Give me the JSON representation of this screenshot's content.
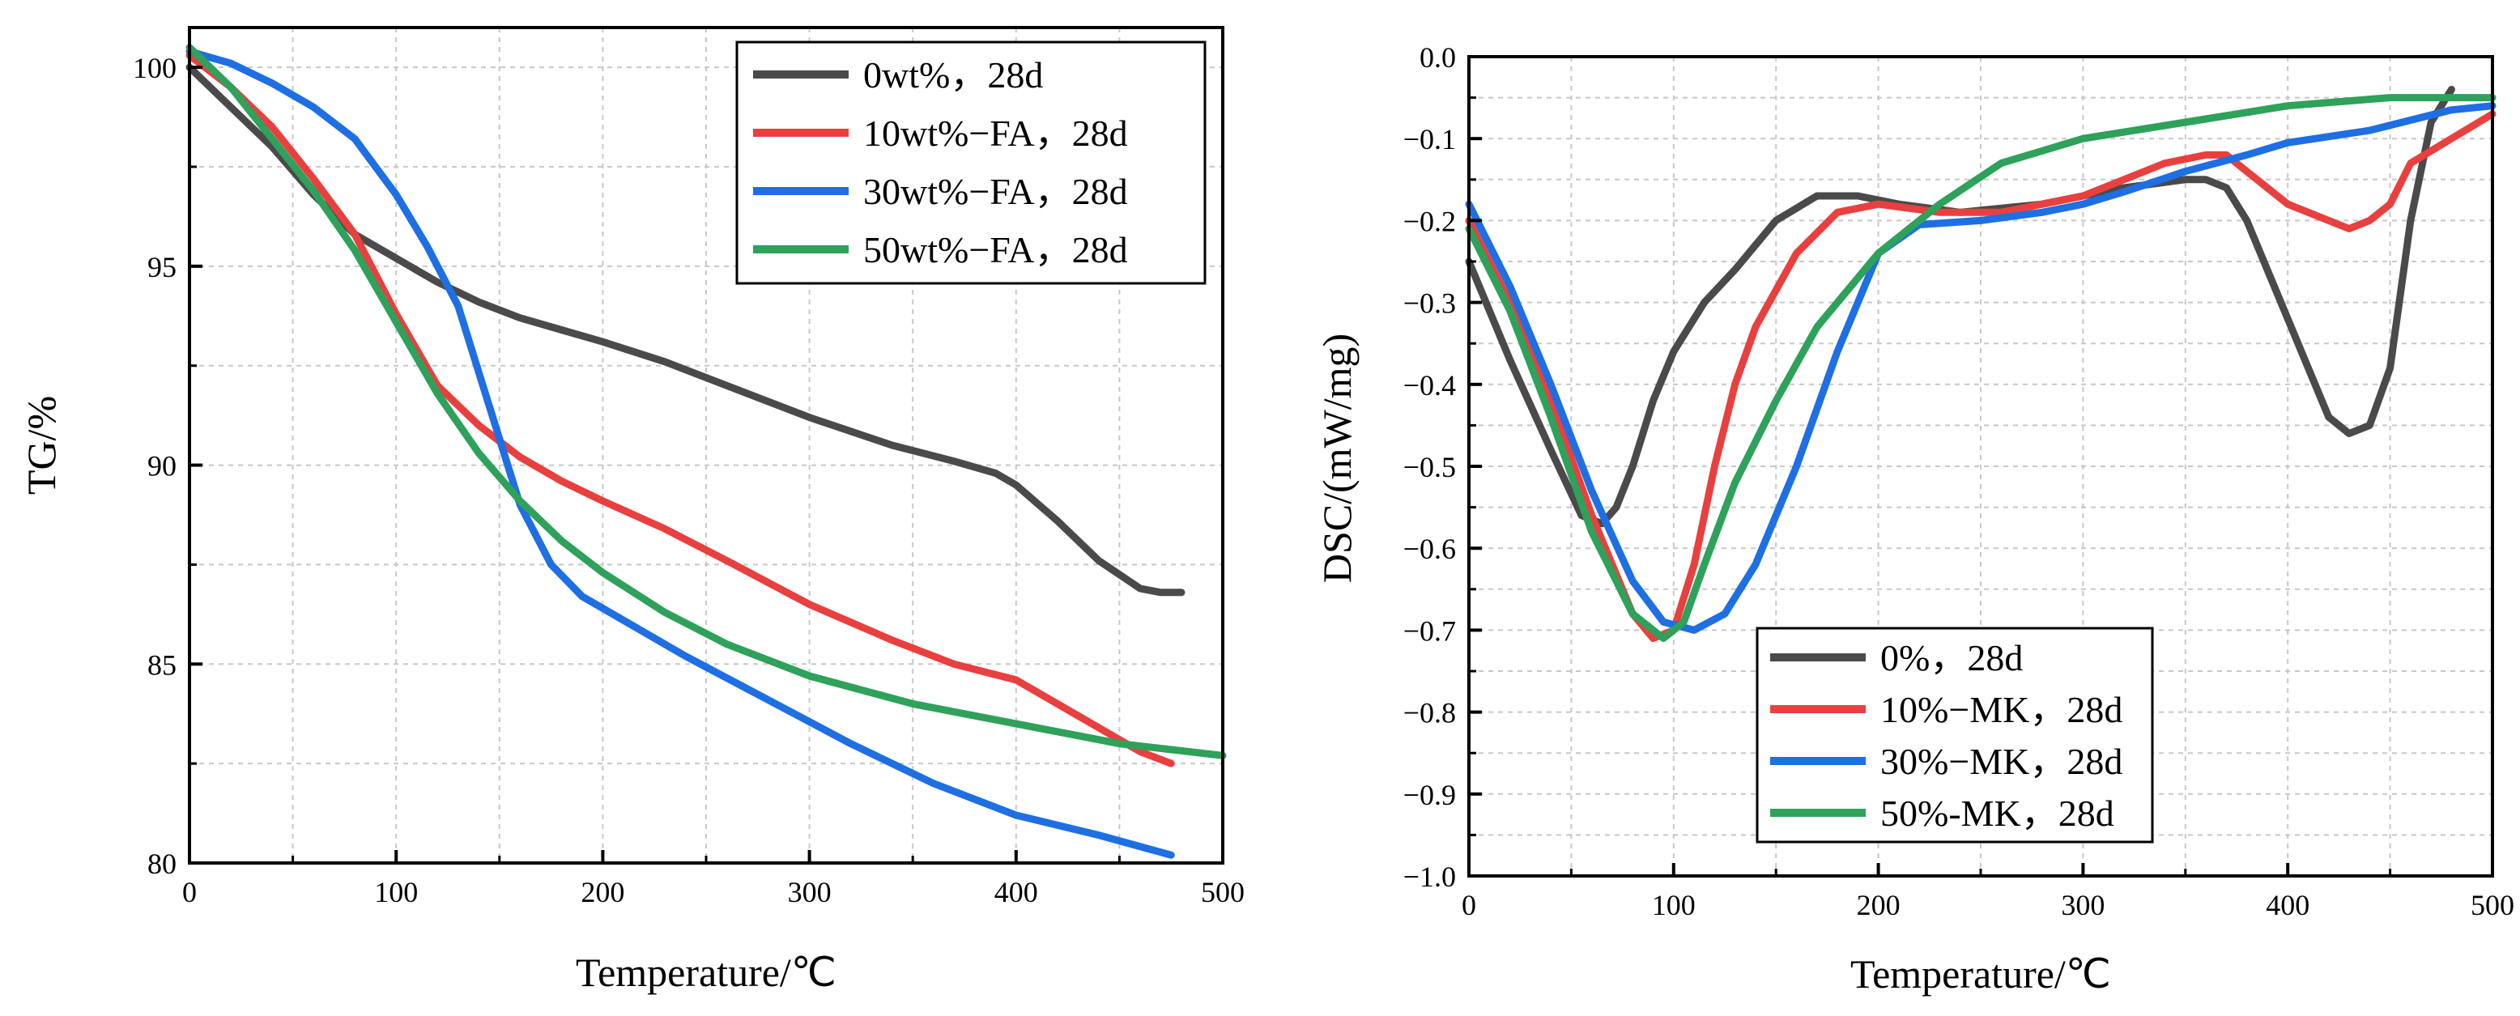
{
  "chart_data": [
    {
      "type": "line",
      "xlabel": "Temperature/℃",
      "ylabel": "TG/%",
      "xlim": [
        0,
        500
      ],
      "ylim": [
        80,
        101
      ],
      "xticks": [
        0,
        100,
        200,
        300,
        400,
        500
      ],
      "yticks": [
        80,
        85,
        90,
        95,
        100
      ],
      "xtick_labels": [
        "0",
        "100",
        "200",
        "300",
        "400",
        "500"
      ],
      "ytick_labels": [
        "80",
        "85",
        "90",
        "95",
        "100"
      ],
      "grid": true,
      "legend_position": "top-right",
      "series": [
        {
          "name": "0wt%，28d",
          "color": "#4a4a4a",
          "x": [
            0,
            20,
            40,
            60,
            80,
            100,
            120,
            140,
            160,
            180,
            200,
            230,
            260,
            300,
            340,
            370,
            390,
            400,
            420,
            440,
            460,
            470,
            480
          ],
          "y": [
            100.0,
            99.0,
            98.0,
            96.8,
            95.8,
            95.2,
            94.6,
            94.1,
            93.7,
            93.4,
            93.1,
            92.6,
            92.0,
            91.2,
            90.5,
            90.1,
            89.8,
            89.5,
            88.6,
            87.6,
            86.9,
            86.8,
            86.8
          ]
        },
        {
          "name": "10wt%−FA，28d",
          "color": "#e8403f",
          "x": [
            0,
            20,
            40,
            60,
            80,
            100,
            120,
            140,
            160,
            180,
            200,
            230,
            260,
            300,
            340,
            370,
            400,
            430,
            460,
            475
          ],
          "y": [
            100.3,
            99.5,
            98.5,
            97.2,
            95.8,
            93.8,
            92.0,
            91.0,
            90.2,
            89.6,
            89.1,
            88.4,
            87.6,
            86.5,
            85.6,
            85.0,
            84.6,
            83.7,
            82.8,
            82.5
          ]
        },
        {
          "name": "30wt%−FA，28d",
          "color": "#1e6fe3",
          "x": [
            0,
            20,
            40,
            60,
            80,
            100,
            115,
            130,
            145,
            160,
            175,
            190,
            210,
            240,
            280,
            320,
            360,
            400,
            440,
            475
          ],
          "y": [
            100.4,
            100.1,
            99.6,
            99.0,
            98.2,
            96.8,
            95.5,
            94.0,
            91.5,
            89.0,
            87.5,
            86.7,
            86.1,
            85.2,
            84.1,
            83.0,
            82.0,
            81.2,
            80.7,
            80.2
          ]
        },
        {
          "name": "50wt%−FA，28d",
          "color": "#2ea15a",
          "x": [
            0,
            20,
            40,
            60,
            80,
            100,
            120,
            140,
            160,
            180,
            200,
            230,
            260,
            300,
            350,
            400,
            450,
            500
          ],
          "y": [
            100.5,
            99.5,
            98.2,
            96.9,
            95.4,
            93.6,
            91.8,
            90.3,
            89.1,
            88.1,
            87.3,
            86.3,
            85.5,
            84.7,
            84.0,
            83.5,
            83.0,
            82.7
          ]
        }
      ]
    },
    {
      "type": "line",
      "xlabel": "Temperature/℃",
      "ylabel": "DSC/(mW/mg)",
      "xlim": [
        0,
        500
      ],
      "ylim": [
        -1.0,
        0.0
      ],
      "xticks": [
        0,
        100,
        200,
        300,
        400,
        500
      ],
      "yticks": [
        -1.0,
        -0.9,
        -0.8,
        -0.7,
        -0.6,
        -0.5,
        -0.4,
        -0.3,
        -0.2,
        -0.1,
        0.0
      ],
      "xtick_labels": [
        "0",
        "100",
        "200",
        "300",
        "400",
        "500"
      ],
      "ytick_labels": [
        "−1.0",
        "−0.9",
        "−0.8",
        "−0.7",
        "−0.6",
        "−0.5",
        "−0.4",
        "−0.3",
        "−0.2",
        "−0.1",
        "0.0"
      ],
      "grid": true,
      "legend_position": "bottom-left",
      "series": [
        {
          "name": "0%，28d",
          "color": "#4a4a4a",
          "x": [
            0,
            20,
            40,
            55,
            65,
            72,
            80,
            90,
            100,
            115,
            130,
            150,
            170,
            190,
            210,
            240,
            280,
            320,
            350,
            360,
            370,
            380,
            390,
            400,
            410,
            420,
            430,
            440,
            450,
            460,
            470,
            480
          ],
          "y": [
            -0.25,
            -0.37,
            -0.48,
            -0.56,
            -0.57,
            -0.55,
            -0.5,
            -0.42,
            -0.36,
            -0.3,
            -0.26,
            -0.2,
            -0.17,
            -0.17,
            -0.18,
            -0.19,
            -0.18,
            -0.16,
            -0.15,
            -0.15,
            -0.16,
            -0.2,
            -0.26,
            -0.32,
            -0.38,
            -0.44,
            -0.46,
            -0.45,
            -0.38,
            -0.2,
            -0.08,
            -0.04
          ]
        },
        {
          "name": "10%−MK，28d",
          "color": "#e8403f",
          "x": [
            0,
            20,
            40,
            60,
            80,
            90,
            100,
            110,
            120,
            130,
            140,
            160,
            180,
            200,
            230,
            260,
            300,
            340,
            360,
            370,
            380,
            400,
            420,
            430,
            440,
            450,
            460,
            480,
            500
          ],
          "y": [
            -0.2,
            -0.3,
            -0.42,
            -0.56,
            -0.68,
            -0.71,
            -0.7,
            -0.62,
            -0.5,
            -0.4,
            -0.33,
            -0.24,
            -0.19,
            -0.18,
            -0.19,
            -0.19,
            -0.17,
            -0.13,
            -0.12,
            -0.12,
            -0.14,
            -0.18,
            -0.2,
            -0.21,
            -0.2,
            -0.18,
            -0.13,
            -0.1,
            -0.07
          ]
        },
        {
          "name": "30%−MK，28d",
          "color": "#1e6fe3",
          "x": [
            0,
            20,
            40,
            60,
            80,
            95,
            110,
            125,
            140,
            160,
            180,
            200,
            220,
            250,
            280,
            300,
            320,
            350,
            380,
            400,
            440,
            480,
            500
          ],
          "y": [
            -0.18,
            -0.28,
            -0.4,
            -0.53,
            -0.64,
            -0.69,
            -0.7,
            -0.68,
            -0.62,
            -0.5,
            -0.36,
            -0.24,
            -0.205,
            -0.2,
            -0.19,
            -0.18,
            -0.165,
            -0.14,
            -0.12,
            -0.105,
            -0.09,
            -0.065,
            -0.06
          ]
        },
        {
          "name": "50%-MK，28d",
          "color": "#2ea15a",
          "x": [
            0,
            20,
            40,
            60,
            80,
            95,
            105,
            115,
            130,
            150,
            170,
            200,
            230,
            260,
            300,
            350,
            400,
            450,
            480,
            500
          ],
          "y": [
            -0.21,
            -0.31,
            -0.44,
            -0.58,
            -0.68,
            -0.71,
            -0.69,
            -0.62,
            -0.52,
            -0.42,
            -0.33,
            -0.24,
            -0.18,
            -0.13,
            -0.1,
            -0.08,
            -0.06,
            -0.05,
            -0.05,
            -0.05
          ]
        }
      ]
    }
  ]
}
